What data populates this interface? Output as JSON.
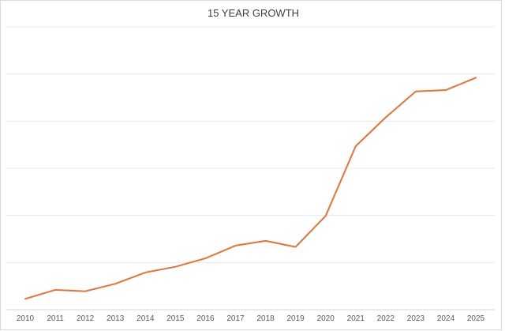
{
  "chart": {
    "title": "15 YEAR GROWTH"
  },
  "chart_data": {
    "type": "line",
    "title": "15 YEAR GROWTH",
    "categories": [
      "2010",
      "2011",
      "2012",
      "2013",
      "2014",
      "2015",
      "2016",
      "2017",
      "2018",
      "2019",
      "2020",
      "2021",
      "2022",
      "2023",
      "2024",
      "2025"
    ],
    "values": [
      0.23,
      0.42,
      0.39,
      0.55,
      0.79,
      0.91,
      1.09,
      1.36,
      1.46,
      1.33,
      1.99,
      3.47,
      4.08,
      4.63,
      4.66,
      4.92
    ],
    "xlabel": "",
    "ylabel": "",
    "ylim": [
      0,
      6
    ],
    "gridline_interval": 1,
    "grid": "horizontal",
    "y_tick_labels_visible": false,
    "legend_position": "none",
    "line_color": "#E97132",
    "gridline_color": "#E8E8E8",
    "axis_line_color": "#D6D6D6",
    "border_color": "#D9D9D9",
    "tick_label_color": "#595959",
    "title_color": "#3F3F3F",
    "background_color": "#FFFFFF"
  }
}
